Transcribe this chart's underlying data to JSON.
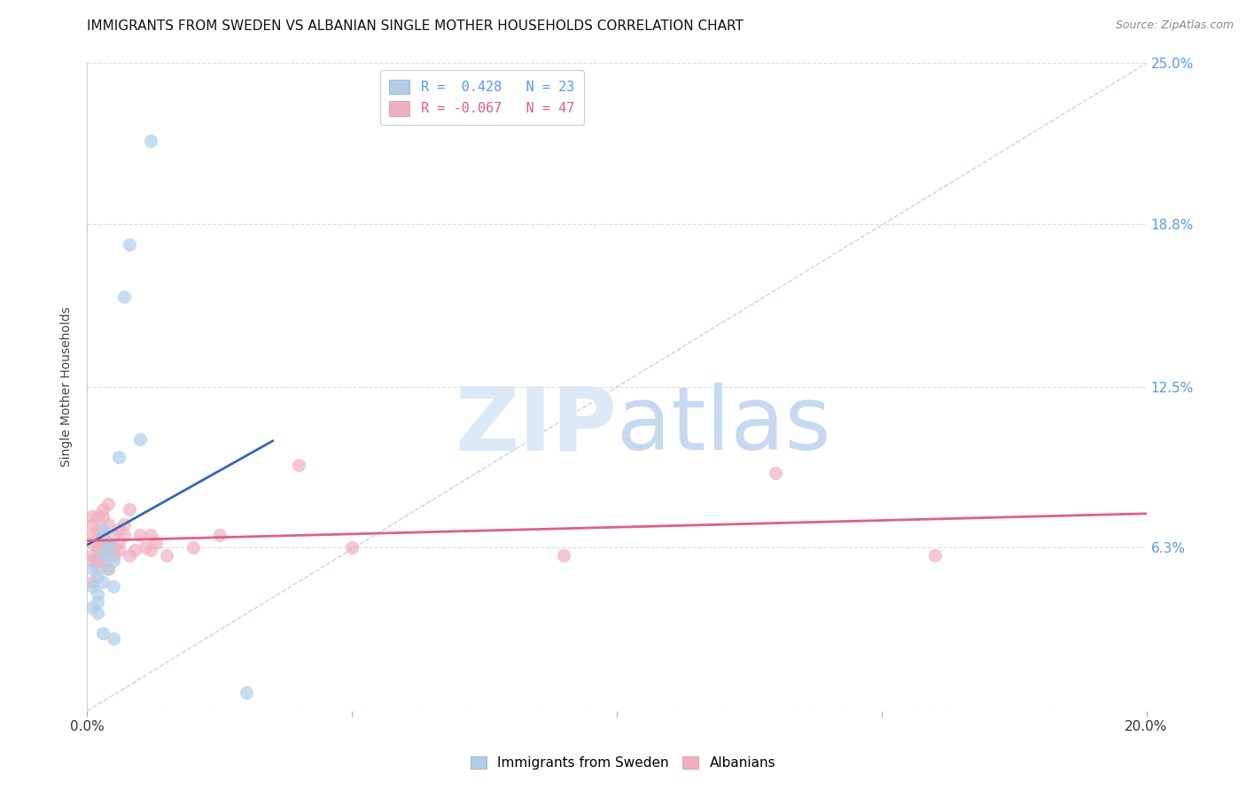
{
  "title": "IMMIGRANTS FROM SWEDEN VS ALBANIAN SINGLE MOTHER HOUSEHOLDS CORRELATION CHART",
  "source": "Source: ZipAtlas.com",
  "ylabel": "Single Mother Households",
  "yticks": [
    0.0,
    0.063,
    0.125,
    0.188,
    0.25
  ],
  "ytick_labels": [
    "",
    "6.3%",
    "12.5%",
    "18.8%",
    "25.0%"
  ],
  "xticks": [
    0.0,
    0.05,
    0.1,
    0.15,
    0.2
  ],
  "xtick_labels": [
    "0.0%",
    "",
    "",
    "",
    "20.0%"
  ],
  "xlim": [
    0.0,
    0.2
  ],
  "ylim": [
    0.0,
    0.25
  ],
  "legend_sweden_R": " 0.428",
  "legend_sweden_N": "23",
  "legend_albanian_R": "-0.067",
  "legend_albanian_N": "47",
  "sweden_color": "#b0cee8",
  "albanian_color": "#f0b0c0",
  "sweden_line_color": "#3366bb",
  "albanian_line_color": "#e06080",
  "diagonal_color": "#b8c8e0",
  "sweden_points_x": [
    0.001,
    0.001,
    0.001,
    0.002,
    0.002,
    0.002,
    0.002,
    0.003,
    0.003,
    0.003,
    0.003,
    0.004,
    0.004,
    0.004,
    0.005,
    0.005,
    0.005,
    0.006,
    0.007,
    0.008,
    0.01,
    0.012,
    0.03
  ],
  "sweden_points_y": [
    0.048,
    0.055,
    0.04,
    0.052,
    0.042,
    0.045,
    0.038,
    0.06,
    0.07,
    0.05,
    0.03,
    0.065,
    0.062,
    0.055,
    0.058,
    0.048,
    0.028,
    0.098,
    0.16,
    0.18,
    0.105,
    0.22,
    0.007
  ],
  "albanian_points_x": [
    0.001,
    0.001,
    0.001,
    0.001,
    0.001,
    0.001,
    0.001,
    0.002,
    0.002,
    0.002,
    0.002,
    0.002,
    0.002,
    0.003,
    0.003,
    0.003,
    0.003,
    0.003,
    0.004,
    0.004,
    0.004,
    0.004,
    0.004,
    0.005,
    0.005,
    0.005,
    0.006,
    0.006,
    0.006,
    0.007,
    0.007,
    0.008,
    0.008,
    0.009,
    0.01,
    0.011,
    0.012,
    0.012,
    0.013,
    0.015,
    0.02,
    0.025,
    0.04,
    0.05,
    0.09,
    0.13,
    0.16
  ],
  "albanian_points_y": [
    0.072,
    0.075,
    0.065,
    0.06,
    0.068,
    0.058,
    0.05,
    0.075,
    0.07,
    0.065,
    0.062,
    0.058,
    0.055,
    0.068,
    0.063,
    0.078,
    0.075,
    0.058,
    0.065,
    0.072,
    0.063,
    0.055,
    0.08,
    0.068,
    0.063,
    0.06,
    0.07,
    0.065,
    0.062,
    0.072,
    0.068,
    0.06,
    0.078,
    0.062,
    0.068,
    0.063,
    0.062,
    0.068,
    0.065,
    0.06,
    0.063,
    0.068,
    0.095,
    0.063,
    0.06,
    0.092,
    0.06
  ],
  "background_color": "#ffffff",
  "grid_color": "#dddddd",
  "title_color": "#111111",
  "ytick_color": "#5599ee",
  "source_color": "#888888"
}
